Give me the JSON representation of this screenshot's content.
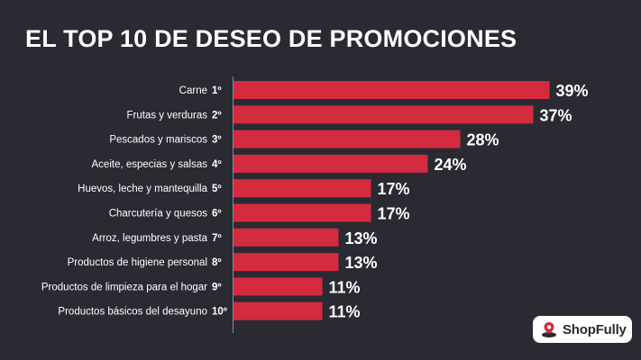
{
  "title": "EL TOP 10 DE DESEO DE PROMOCIONES",
  "brand": {
    "name": "ShopFully"
  },
  "colors": {
    "background": "#2a2a33",
    "bar": "#d42b3f",
    "text": "#ffffff",
    "axis": "#8a8a92"
  },
  "chart_data": {
    "type": "bar",
    "orientation": "horizontal",
    "categories": [
      "Carne",
      "Frutas y verduras",
      "Pescados y mariscos",
      "Aceite, especias y salsas",
      "Huevos, leche y mantequilla",
      "Charcutería y quesos",
      "Arroz, legumbres y pasta",
      "Productos de higiene personal",
      "Productos de limpieza para el hogar",
      "Productos básicos del desayuno"
    ],
    "ranks": [
      "1º",
      "2º",
      "3º",
      "4º",
      "5º",
      "6º",
      "7º",
      "8º",
      "9º",
      "10º"
    ],
    "values": [
      39,
      37,
      28,
      24,
      17,
      17,
      13,
      13,
      11,
      11
    ],
    "value_labels": [
      "39%",
      "37%",
      "28%",
      "24%",
      "17%",
      "17%",
      "13%",
      "13%",
      "11%",
      "11%"
    ],
    "xlim": [
      0,
      39
    ],
    "grid": false,
    "xlabel": "",
    "ylabel": ""
  }
}
